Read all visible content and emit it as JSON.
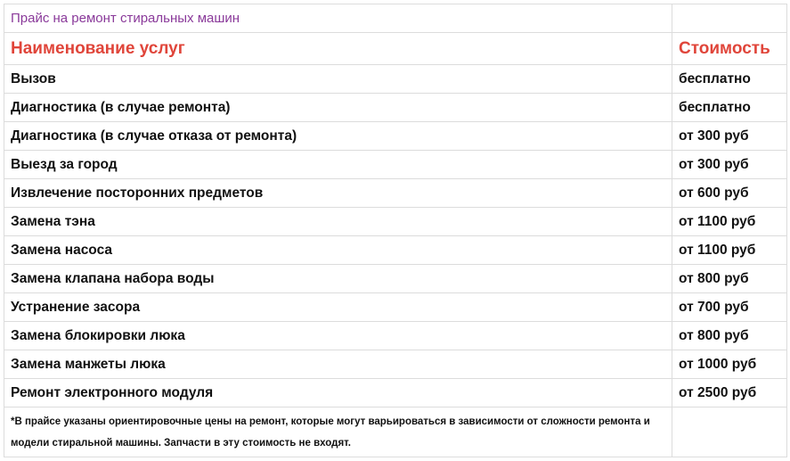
{
  "table": {
    "title": "Прайс на ремонт стиральных машин",
    "header": [
      "Наименование услуг",
      "Стоимость"
    ],
    "rows": [
      [
        "Вызов",
        "бесплатно"
      ],
      [
        "Диагностика (в случае ремонта)",
        "бесплатно"
      ],
      [
        "Диагностика (в случае отказа от ремонта)",
        "от 300 руб"
      ],
      [
        "Выезд за город",
        "от 300 руб"
      ],
      [
        "Извлечение посторонних предметов",
        "от 600 руб"
      ],
      [
        "Замена тэна",
        "от 1100 руб"
      ],
      [
        "Замена насоса",
        "от 1100 руб"
      ],
      [
        "Замена клапана набора воды",
        "от 800 руб"
      ],
      [
        "Устранение засора",
        "от 700 руб"
      ],
      [
        "Замена блокировки люка",
        "от 800 руб"
      ],
      [
        "Замена манжеты люка",
        "от 1000 руб"
      ],
      [
        "Ремонт электронного модуля",
        "от 2500 руб"
      ]
    ],
    "footnote": "*В прайсе указаны ориентировочные цены на ремонт, которые могут варьироваться в зависимости от сложности ремонта и модели стиральной машины. Запчасти в эту стоимость не входят."
  }
}
